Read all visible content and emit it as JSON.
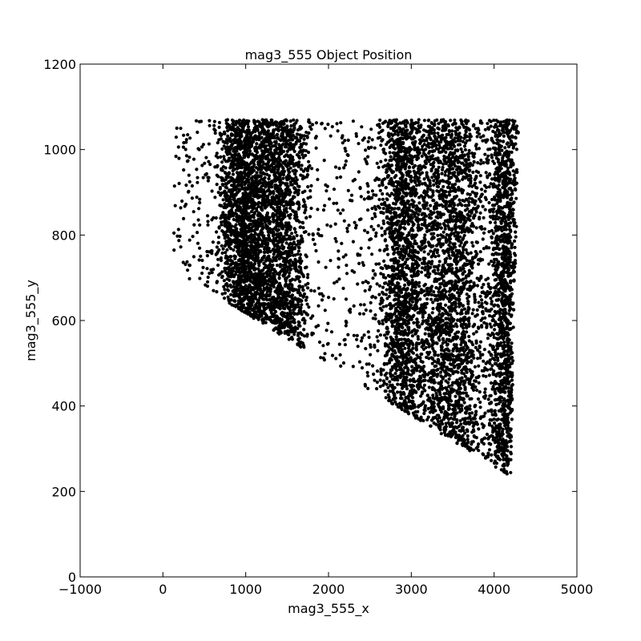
{
  "chart_data": {
    "type": "scatter",
    "title": "mag3_555 Object Position",
    "xlabel": "mag3_555_x",
    "ylabel": "mag3_555_y",
    "xlim": [
      -1000,
      5000
    ],
    "ylim": [
      0,
      1200
    ],
    "xticks": [
      -1000,
      0,
      1000,
      2000,
      3000,
      4000,
      5000
    ],
    "xtick_labels": [
      "−1000",
      "0",
      "1000",
      "2000",
      "3000",
      "4000",
      "5000"
    ],
    "yticks": [
      0,
      200,
      400,
      600,
      800,
      1000,
      1200
    ],
    "ytick_labels": [
      "0",
      "200",
      "400",
      "600",
      "800",
      "1000",
      "1200"
    ],
    "grid": false,
    "legend": "none",
    "marker_color": "#000000",
    "region": {
      "x_range": [
        130,
        4300
      ],
      "y_top": 1070,
      "lower_edge": [
        [
          130,
          720
        ],
        [
          4200,
          235
        ]
      ],
      "right_edge": [
        [
          4200,
          235
        ],
        [
          4300,
          1070
        ]
      ]
    },
    "density_bands": [
      {
        "x_center": 1050,
        "x_width": 150,
        "weight": 4.0
      },
      {
        "x_center": 850,
        "x_width": 100,
        "weight": 1.6
      },
      {
        "x_center": 1300,
        "x_width": 150,
        "weight": 2.2
      },
      {
        "x_center": 1520,
        "x_width": 120,
        "weight": 2.2
      },
      {
        "x_center": 2880,
        "x_width": 130,
        "weight": 3.0
      },
      {
        "x_center": 3350,
        "x_width": 200,
        "weight": 2.6
      },
      {
        "x_center": 3600,
        "x_width": 180,
        "weight": 1.8
      },
      {
        "x_center": 4130,
        "x_width": 90,
        "weight": 2.4
      }
    ],
    "approx_point_count": 9000
  }
}
